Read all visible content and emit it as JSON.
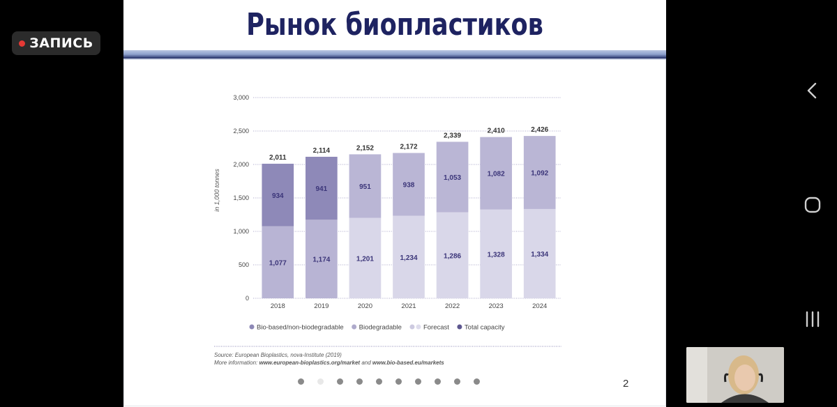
{
  "recording": {
    "label": "ЗАПИСЬ"
  },
  "slide": {
    "title": "Рынок биопластиков",
    "page_number": "2",
    "source_line": "Source: European Bioplastics, nova-Institute (2019)",
    "more_info_prefix": "More information: ",
    "more_info_link1": "www.european-bioplastics.org/market",
    "more_info_and": " and ",
    "more_info_link2": "www.bio-based.eu/markets",
    "pager": {
      "count": 10,
      "active_index": 1
    }
  },
  "chart_data": {
    "type": "bar",
    "stacked": true,
    "categories": [
      "2018",
      "2019",
      "2020",
      "2021",
      "2022",
      "2023",
      "2024"
    ],
    "ylabel": "in 1,000 tonnes",
    "ylim": [
      0,
      3000
    ],
    "yticks": [
      0,
      500,
      1000,
      1500,
      2000,
      2500,
      3000
    ],
    "ytick_labels": [
      "0",
      "500",
      "1,000",
      "1,500",
      "2,000",
      "2,500",
      "3,000"
    ],
    "grid": true,
    "forecast_from_index": 2,
    "series": [
      {
        "name": "Bio-based/non-biodegradable",
        "values": [
          1077,
          1174,
          1201,
          1234,
          1286,
          1328,
          1334
        ],
        "value_labels": [
          "1,077",
          "1,174",
          "1,201",
          "1,234",
          "1,286",
          "1,328",
          "1,334"
        ]
      },
      {
        "name": "Biodegradable",
        "values": [
          934,
          941,
          951,
          938,
          1053,
          1082,
          1092
        ],
        "value_labels": [
          "934",
          "941",
          "951",
          "938",
          "1,053",
          "1,082",
          "1,092"
        ]
      }
    ],
    "totals": [
      2011,
      2114,
      2152,
      2172,
      2339,
      2410,
      2426
    ],
    "total_labels": [
      "2,011",
      "2,114",
      "2,152",
      "2,172",
      "2,339",
      "2,410",
      "2,426"
    ],
    "legend": [
      {
        "label": "Bio-based/non-biodegradable",
        "color": "#8d88b6"
      },
      {
        "label": "Biodegradable",
        "color": "#aeaacb"
      },
      {
        "label": "Forecast",
        "color": "#cdcae0",
        "color2": "#dedcec"
      },
      {
        "label": "Total capacity",
        "color": "#5d578f"
      }
    ],
    "legend_position": "bottom",
    "colors": {
      "bio_based": "#b8b4d4",
      "biodegradable": "#8e89b8",
      "forecast_bio_based": "#d9d7e9",
      "forecast_biodegradable": "#bab6d5",
      "label_text": "#3b3579",
      "axis_text": "#444444"
    }
  },
  "system_nav": {
    "back_icon": "back-chevron-icon",
    "home_icon": "home-icon",
    "recents_icon": "recents-icon"
  }
}
